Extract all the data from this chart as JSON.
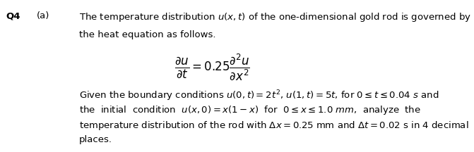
{
  "q_label": "Q4",
  "part_label": "(a)",
  "line1": "The temperature distribution $u(x, t)$ of the one-dimensional gold rod is governed by",
  "line2": "the heat equation as follows.",
  "equation_num": "$\\dfrac{\\partial u}{\\partial t}$",
  "equation_eq": "$= 0.25$",
  "equation_den": "$\\dfrac{\\partial^2 u}{\\partial x^2}$",
  "para_line1": "Given the boundary conditions $u(0, t) = 2t^2$, $u(1, t) = 5t$, for $0 \\leq t \\leq 0.04$ $s$ and",
  "para_line2": "the  initial  condition  $u(x, 0) = x(1 - x)$  for  $0 \\leq x \\leq 1.0$ $mm$,  analyze  the",
  "para_line3": "temperature distribution of the rod with $\\Delta x = 0.25$ mm and $\\Delta t = 0.02$ s in 4 decimal",
  "para_line4": "places.",
  "bg_color": "#ffffff",
  "text_color": "#000000",
  "fontsize": 9.5,
  "eq_fontsize": 12,
  "fig_width": 6.71,
  "fig_height": 2.16,
  "dpi": 100
}
